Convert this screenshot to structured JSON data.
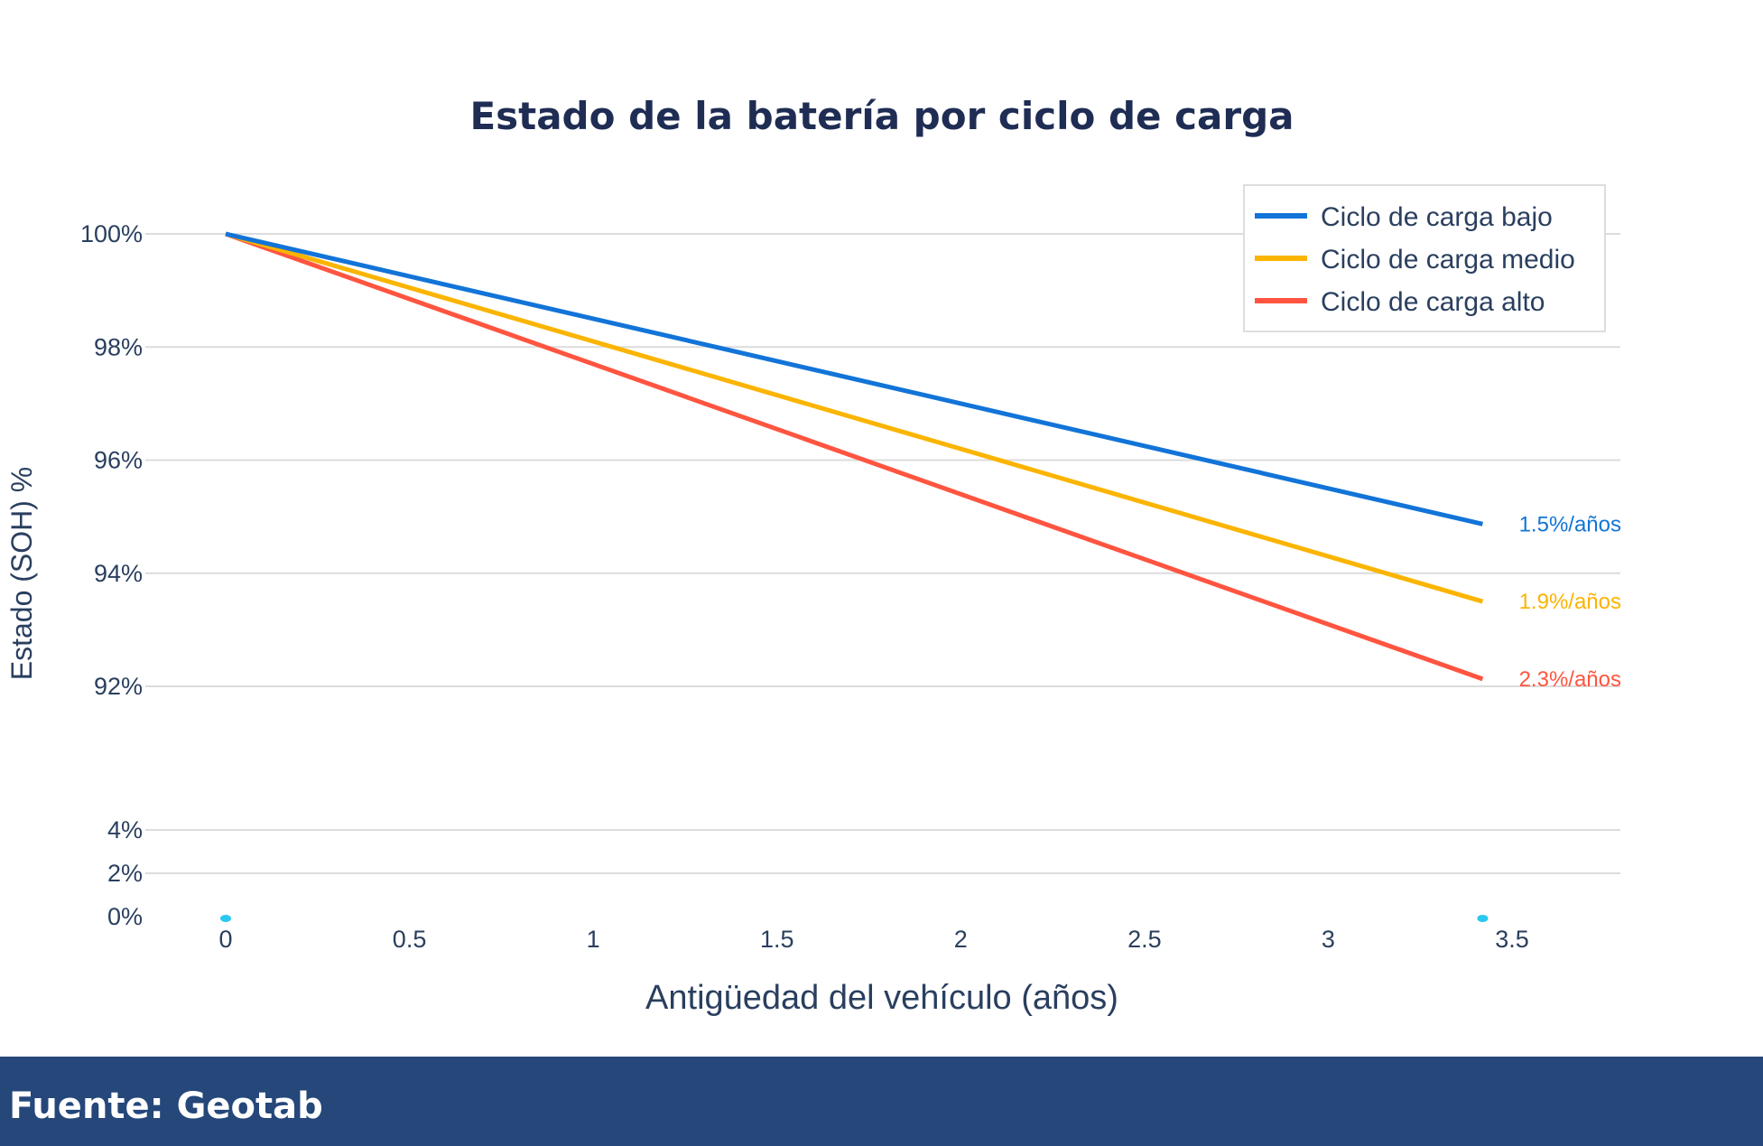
{
  "chart_data": {
    "type": "line",
    "title": "Estado de la batería por ciclo de carga",
    "xlabel": "Antigüedad del vehículo (años)",
    "ylabel": "Estado (SOH) %",
    "xlim": [
      0,
      3.5
    ],
    "x_ticks": [
      "0",
      "0.5",
      "1",
      "1.5",
      "2",
      "2.5",
      "3",
      "3.5"
    ],
    "y_axis_broken": true,
    "y_segments": [
      [
        0,
        4
      ],
      [
        92,
        100
      ]
    ],
    "y_ticks": [
      "100%",
      "98%",
      "96%",
      "94%",
      "92%",
      "4%",
      "2%",
      "0%"
    ],
    "grid": true,
    "legend_position": "top-right",
    "series": [
      {
        "name": "Ciclo de carga bajo",
        "color": "#1274d8",
        "x": [
          0,
          3.42
        ],
        "y": [
          100,
          94.87
        ],
        "annotation": "1.5%/años"
      },
      {
        "name": "Ciclo de carga medio",
        "color": "#fbb400",
        "x": [
          0,
          3.42
        ],
        "y": [
          100,
          93.5
        ],
        "annotation": "1.9%/años"
      },
      {
        "name": "Ciclo de carga alto",
        "color": "#ff5540",
        "x": [
          0,
          3.42
        ],
        "y": [
          100,
          92.13
        ],
        "annotation": "2.3%/años"
      }
    ],
    "markers": {
      "color": "#29c8f0",
      "x": [
        0,
        3.42
      ],
      "y": [
        0,
        0
      ]
    }
  },
  "footer": {
    "source": "Fuente: Geotab"
  }
}
